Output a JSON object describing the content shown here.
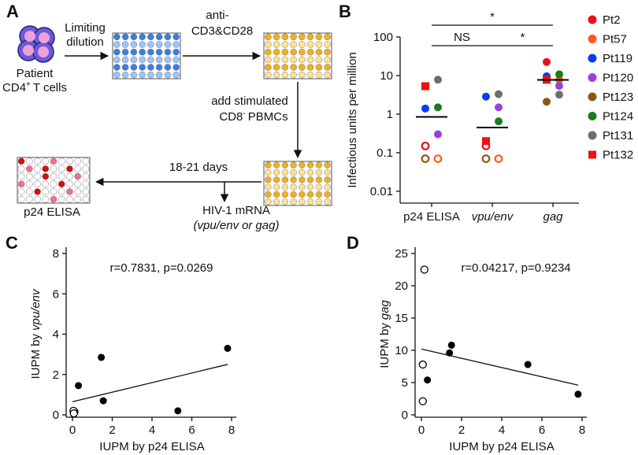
{
  "diagram": {
    "panel_label": "A",
    "patient": [
      "Patient",
      "CD4",
      "+",
      "T cells"
    ],
    "step1": [
      "Limiting",
      "dilution"
    ],
    "step2": [
      "anti-",
      "CD3&CD28"
    ],
    "step3": [
      "add stimulated",
      "CD8",
      "-",
      "PBMCs"
    ],
    "step4": "18-21 days",
    "readout_mrna": [
      "HIV-1 mRNA",
      "(",
      "vpu/env",
      "or",
      "gag",
      ")"
    ],
    "readout_elisa": "p24 ELISA"
  },
  "chart_data": [
    {
      "type": "dotplot",
      "panel_label": "B",
      "ylabel": "Infectious units per million",
      "categories": [
        "p24 ELISA",
        "vpu/env",
        "gag"
      ],
      "category_italic": [
        false,
        true,
        true
      ],
      "log_y": true,
      "ylim": [
        0.01,
        100
      ],
      "yticks": [
        0.01,
        0.1,
        1,
        10,
        100
      ],
      "series": [
        {
          "name": "Pt2",
          "color": "#e8101c",
          "shape": "circle",
          "values": [
            0.15,
            0.15,
            22.5
          ],
          "open": [
            true,
            true,
            false
          ]
        },
        {
          "name": "Pt57",
          "color": "#ff5a1f",
          "shape": "circle",
          "values": [
            0.07,
            0.07,
            7.8
          ],
          "open": [
            true,
            true,
            false
          ]
        },
        {
          "name": "Pt119",
          "color": "#0a3cf0",
          "shape": "circle",
          "values": [
            1.4,
            2.85,
            9.6
          ],
          "open": [
            false,
            false,
            false
          ]
        },
        {
          "name": "Pt120",
          "color": "#9b40e0",
          "shape": "circle",
          "values": [
            0.3,
            1.5,
            5.4
          ],
          "open": [
            false,
            false,
            false
          ]
        },
        {
          "name": "Pt123",
          "color": "#8b5a10",
          "shape": "circle",
          "values": [
            0.07,
            0.07,
            2.1
          ],
          "open": [
            true,
            true,
            false
          ]
        },
        {
          "name": "Pt124",
          "color": "#1e7a1e",
          "shape": "circle",
          "values": [
            1.5,
            0.65,
            10.8
          ],
          "open": [
            false,
            false,
            false
          ]
        },
        {
          "name": "Pt131",
          "color": "#6a7070",
          "shape": "circle",
          "values": [
            7.8,
            3.3,
            3.2
          ],
          "open": [
            false,
            false,
            false
          ]
        },
        {
          "name": "Pt132",
          "color": "#ee1111",
          "shape": "square",
          "values": [
            5.3,
            0.2,
            7.8
          ],
          "open": [
            false,
            false,
            false
          ]
        }
      ],
      "means": [
        0.85,
        0.45,
        7.7
      ],
      "brackets": [
        {
          "label": "*",
          "from": 0,
          "to": 2
        },
        {
          "label": "NS",
          "from": 0,
          "to": 1
        },
        {
          "label": "*",
          "from": 1,
          "to": 2
        }
      ],
      "legend": "right"
    },
    {
      "type": "scatter",
      "panel_label": "C",
      "xlabel": "IUPM by p24 ELISA",
      "ylabel": [
        "IUPM by",
        "vpu/env"
      ],
      "annotation": "r=0.7831, p=0.0269",
      "color": "#000000",
      "x": [
        7.8,
        5.3,
        1.45,
        1.55,
        0.3,
        0.1,
        0.05,
        0.07
      ],
      "y": [
        3.3,
        0.2,
        2.85,
        0.7,
        1.45,
        0.15,
        0.2,
        0.07
      ],
      "open": [
        false,
        false,
        false,
        false,
        false,
        true,
        true,
        true
      ],
      "xlim": [
        0,
        8
      ],
      "xticks": [
        0,
        2,
        4,
        6,
        8
      ],
      "ylim": [
        0,
        8
      ],
      "yticks": [
        0,
        2,
        4,
        6,
        8
      ],
      "fit": {
        "x": [
          0,
          7.8
        ],
        "y": [
          0.65,
          2.5
        ]
      }
    },
    {
      "type": "scatter",
      "panel_label": "D",
      "xlabel": "IUPM by p24 ELISA",
      "ylabel": [
        "IUPM by",
        "gag"
      ],
      "annotation": "r=0.04217, p=0.9234",
      "color": "#000000",
      "x": [
        7.8,
        5.3,
        1.4,
        1.5,
        0.3,
        0.15,
        0.07,
        0.07
      ],
      "y": [
        3.2,
        7.8,
        9.6,
        10.8,
        5.4,
        22.5,
        7.8,
        2.1
      ],
      "open": [
        false,
        false,
        false,
        false,
        false,
        true,
        true,
        true
      ],
      "xlim": [
        0,
        8
      ],
      "xticks": [
        0,
        2,
        4,
        6,
        8
      ],
      "ylim": [
        0,
        25
      ],
      "yticks": [
        0,
        5,
        10,
        15,
        20,
        25
      ],
      "fit": {
        "x": [
          0,
          7.8
        ],
        "y": [
          10.2,
          4.6
        ]
      }
    }
  ]
}
